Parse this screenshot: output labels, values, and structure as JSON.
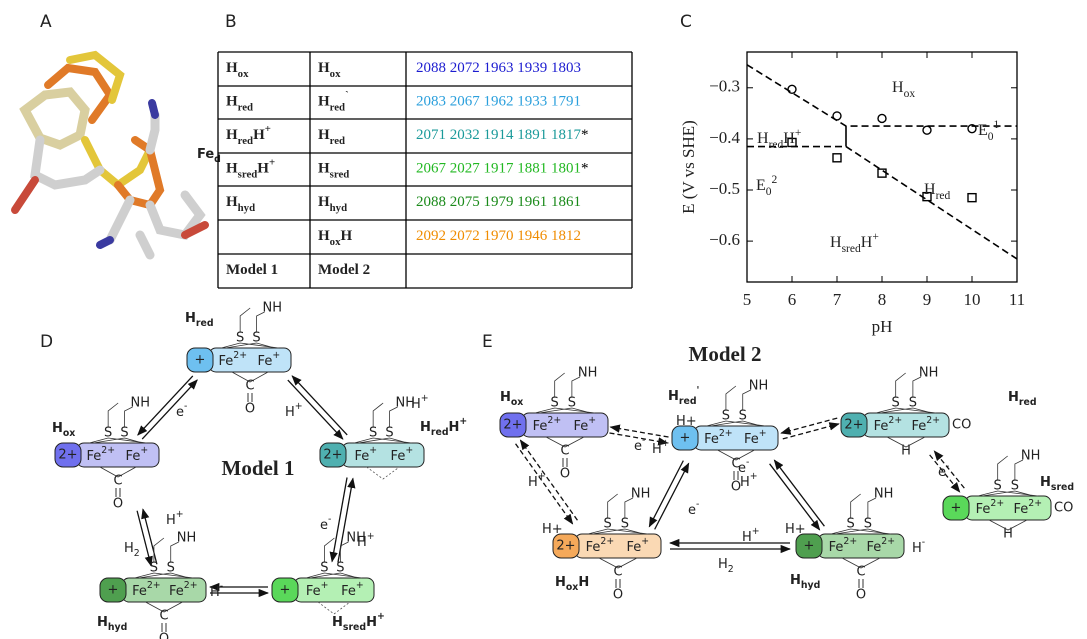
{
  "panel_labels": [
    "A",
    "B",
    "C",
    "D",
    "E"
  ],
  "structure": {
    "label": [
      {
        "text": "Fe"
      },
      {
        "text": "d",
        "shift": "sub"
      }
    ]
  },
  "table": {
    "rows": [
      {
        "model1": [
          {
            "text": "H"
          },
          {
            "text": "ox",
            "shift": "sub"
          }
        ],
        "model2": [
          {
            "text": "H"
          },
          {
            "text": "ox",
            "shift": "sub"
          }
        ],
        "frequencies": "2088 2072 1963 1939 1803",
        "color": "#1c1cd0"
      },
      {
        "model1": [
          {
            "text": "H"
          },
          {
            "text": "red",
            "shift": "sub"
          }
        ],
        "model2": [
          {
            "text": "H"
          },
          {
            "text": "red",
            "shift": "sub"
          },
          {
            "text": "`",
            "shift": "super"
          }
        ],
        "frequencies": "2083 2067 1962 1933 1791",
        "color": "#2a9fdc"
      },
      {
        "model1": [
          {
            "text": "H"
          },
          {
            "text": "red",
            "shift": "sub"
          },
          {
            "text": "H"
          },
          {
            "text": "+",
            "shift": "super"
          }
        ],
        "model2": [
          {
            "text": "H"
          },
          {
            "text": "red",
            "shift": "sub"
          }
        ],
        "frequencies": "2071 2032 1914 1891 1817",
        "note": "*",
        "color": "#1a9a9a"
      },
      {
        "model1": [
          {
            "text": "H"
          },
          {
            "text": "sred",
            "shift": "sub"
          },
          {
            "text": "H"
          },
          {
            "text": "+",
            "shift": "super"
          }
        ],
        "model2": [
          {
            "text": "H"
          },
          {
            "text": "sred",
            "shift": "sub"
          }
        ],
        "frequencies": "2067 2027 1917 1881 1801",
        "note": "*",
        "color": "#22b822"
      },
      {
        "model1": [
          {
            "text": "H"
          },
          {
            "text": "hyd",
            "shift": "sub"
          }
        ],
        "model2": [
          {
            "text": "H"
          },
          {
            "text": "hyd",
            "shift": "sub"
          }
        ],
        "frequencies": "2088 2075 1979 1961 1861",
        "color": "#1a8a1a"
      },
      {
        "model2": [
          {
            "text": "H"
          },
          {
            "text": "ox",
            "shift": "sub"
          },
          {
            "text": "H"
          }
        ],
        "frequencies": "2092 2072 1970 1946 1812",
        "color": "#f08c00"
      },
      {
        "model1": [
          {
            "text": "Model 1"
          }
        ],
        "model2": [
          {
            "text": "Model 2"
          }
        ]
      }
    ]
  },
  "chart_data": {
    "type": "scatter",
    "xlabel": "pH",
    "ylabel": "E (V vs SHE)",
    "xlim": [
      5,
      11
    ],
    "ylim": [
      -0.68,
      -0.23
    ],
    "xticks": [
      5,
      6,
      7,
      8,
      9,
      10,
      11
    ],
    "yticks": [
      {
        "value": -0.3,
        "label": "−0.3"
      },
      {
        "value": -0.4,
        "label": "−0.4"
      },
      {
        "value": -0.5,
        "label": "−0.5"
      },
      {
        "value": -0.6,
        "label": "−0.6"
      }
    ],
    "series": [
      {
        "marker": "circle",
        "color": "#000000",
        "x": [
          6,
          7,
          8,
          9,
          10
        ],
        "values": [
          -0.303,
          -0.355,
          -0.36,
          -0.383,
          -0.38
        ]
      },
      {
        "marker": "square",
        "color": "#000000",
        "x": [
          6,
          7,
          8,
          9,
          10
        ],
        "values": [
          -0.407,
          -0.437,
          -0.467,
          -0.513,
          -0.515
        ]
      },
      {
        "line": "dashed",
        "color": "#000000",
        "x": [
          5,
          7.2,
          11
        ],
        "values": [
          -0.255,
          -0.375,
          -0.375
        ]
      },
      {
        "line": "dashed",
        "color": "#000000",
        "x": [
          5,
          7.2,
          11
        ],
        "values": [
          -0.415,
          -0.415,
          -0.635
        ]
      },
      {
        "line": "solid",
        "color": "#000000",
        "x": [
          7.2,
          7.2
        ],
        "values": [
          -0.375,
          -0.415
        ]
      }
    ],
    "annotations": [
      {
        "text": [
          {
            "text": "H"
          },
          {
            "text": "ox",
            "shift": "sub"
          }
        ],
        "color": "#2222cc"
      },
      {
        "text": [
          {
            "text": "H"
          },
          {
            "text": "red",
            "shift": "sub"
          },
          {
            "text": "H"
          },
          {
            "text": "+",
            "shift": "super"
          }
        ],
        "color": "#1a9a9a"
      },
      {
        "text": [
          {
            "text": "E"
          },
          {
            "text": "0",
            "shift": "sub"
          },
          {
            "text": "1",
            "shift": "super"
          }
        ],
        "color": "#000000"
      },
      {
        "text": [
          {
            "text": "E"
          },
          {
            "text": "0",
            "shift": "sub"
          },
          {
            "text": "2",
            "shift": "super"
          }
        ],
        "color": "#000000"
      },
      {
        "text": [
          {
            "text": "H"
          },
          {
            "text": "red",
            "shift": "sub"
          }
        ],
        "color": "#3aa0e8"
      },
      {
        "text": [
          {
            "text": "H"
          },
          {
            "text": "sred",
            "shift": "sub"
          },
          {
            "text": "H"
          },
          {
            "text": "+",
            "shift": "super"
          }
        ],
        "color": "#30c030"
      }
    ]
  },
  "model1": {
    "title": "Model 1",
    "nodes": [
      {
        "name": [
          {
            "text": "H"
          },
          {
            "text": "red",
            "shift": "sub"
          }
        ],
        "charge": "+",
        "charge_color": "#6ec0f0",
        "box_color": "#bfe3f8",
        "iron": [
          [
            {
              "text": "Fe"
            },
            {
              "text": "2+",
              "shift": "super"
            }
          ],
          [
            {
              "text": "Fe"
            },
            {
              "text": "+",
              "shift": "super"
            }
          ]
        ],
        "sulfur": [
          "S",
          "S"
        ],
        "amine": "NH",
        "bridge": "C",
        "oxygen": "O"
      },
      {
        "name": [
          {
            "text": "H"
          },
          {
            "text": "ox",
            "shift": "sub"
          }
        ],
        "charge": "2+",
        "charge_color": "#7070ee",
        "box_color": "#c0c0f4",
        "iron": [
          [
            {
              "text": "Fe"
            },
            {
              "text": "2+",
              "shift": "super"
            }
          ],
          [
            {
              "text": "Fe"
            },
            {
              "text": "+",
              "shift": "super"
            }
          ]
        ],
        "sulfur": [
          "S",
          "S"
        ],
        "amine": "NH",
        "bridge": "C",
        "oxygen": "O"
      },
      {
        "name": [
          {
            "text": "H"
          },
          {
            "text": "red",
            "shift": "sub"
          },
          {
            "text": "H"
          },
          {
            "text": "+",
            "shift": "super"
          }
        ],
        "charge": "2+",
        "charge_color": "#4fb0b0",
        "box_color": "#b4e2e2",
        "iron": [
          [
            {
              "text": "Fe"
            },
            {
              "text": "+",
              "shift": "super"
            }
          ],
          [
            {
              "text": "Fe"
            },
            {
              "text": "+",
              "shift": "super"
            }
          ]
        ],
        "sulfur": [
          "S",
          "S"
        ],
        "amine": "NH",
        "extras": [
          [
            {
              "text": "H"
            },
            {
              "text": "+",
              "shift": "super"
            }
          ]
        ],
        "extra_color": "#e02020"
      },
      {
        "name": [
          {
            "text": "H"
          },
          {
            "text": "hyd",
            "shift": "sub"
          }
        ],
        "charge": "+",
        "charge_color": "#4f9f4f",
        "box_color": "#a8d8a8",
        "iron": [
          [
            {
              "text": "Fe"
            },
            {
              "text": "2+",
              "shift": "super"
            }
          ],
          [
            {
              "text": "Fe"
            },
            {
              "text": "2+",
              "shift": "super"
            }
          ]
        ],
        "sulfur": [
          "S",
          "S"
        ],
        "amine": "NH",
        "bridge": "C",
        "oxygen": "O",
        "extras": [
          [
            {
              "text": "H"
            },
            {
              "text": "-",
              "shift": "super"
            }
          ]
        ],
        "extra_color": "#e02020"
      },
      {
        "name": [
          {
            "text": "H"
          },
          {
            "text": "sred",
            "shift": "sub"
          },
          {
            "text": "H"
          },
          {
            "text": "+",
            "shift": "super"
          }
        ],
        "charge": "+",
        "charge_color": "#5ad85a",
        "box_color": "#b4f0b4",
        "iron": [
          [
            {
              "text": "Fe"
            },
            {
              "text": "+",
              "shift": "super"
            }
          ],
          [
            {
              "text": "Fe"
            },
            {
              "text": "+",
              "shift": "super"
            }
          ]
        ],
        "sulfur": [
          "S",
          "S"
        ],
        "amine": "NH",
        "extras": [
          [
            {
              "text": "H"
            },
            {
              "text": "+",
              "shift": "super"
            }
          ]
        ],
        "extra_color": "#e02020"
      }
    ],
    "edges": [
      {
        "style": "solid",
        "labels": [
          [
            {
              "text": "e"
            },
            {
              "text": "-",
              "shift": "super"
            }
          ]
        ]
      },
      {
        "style": "solid",
        "labels": [
          [
            {
              "text": "H"
            },
            {
              "text": "+",
              "shift": "super"
            }
          ]
        ]
      },
      {
        "style": "solid",
        "labels": [
          [
            {
              "text": "e"
            },
            {
              "text": "-",
              "shift": "super"
            }
          ]
        ]
      },
      {
        "style": "solid",
        "labels": [
          [
            {
              "text": "H"
            },
            {
              "text": "+",
              "shift": "super"
            }
          ],
          [
            {
              "text": "H"
            },
            {
              "text": "2",
              "shift": "sub"
            }
          ]
        ]
      },
      {
        "style": "solid"
      }
    ]
  },
  "model2": {
    "title": "Model 2",
    "nodes": [
      {
        "name": [
          {
            "text": "H"
          },
          {
            "text": "ox",
            "shift": "sub"
          }
        ],
        "charge": "2+",
        "charge_color": "#7070ee",
        "box_color": "#c0c0f4",
        "iron": [
          [
            {
              "text": "Fe"
            },
            {
              "text": "2+",
              "shift": "super"
            }
          ],
          [
            {
              "text": "Fe"
            },
            {
              "text": "+",
              "shift": "super"
            }
          ]
        ],
        "sulfur": [
          "S",
          "S"
        ],
        "amine": "NH",
        "bridge": "C",
        "oxygen": "O"
      },
      {
        "name": [
          {
            "text": "H"
          },
          {
            "text": "red",
            "shift": "sub"
          },
          {
            "text": "'",
            "shift": "super"
          }
        ],
        "charge": "+",
        "charge_color": "#6ec0f0",
        "box_color": "#bfe3f8",
        "iron": [
          [
            {
              "text": "Fe"
            },
            {
              "text": "2+",
              "shift": "super"
            }
          ],
          [
            {
              "text": "Fe"
            },
            {
              "text": "+",
              "shift": "super"
            }
          ]
        ],
        "sulfur": [
          "S",
          "S"
        ],
        "amine": "NH",
        "bridge": "C",
        "oxygen": "O",
        "extras": [
          [
            {
              "text": "H+"
            }
          ]
        ],
        "extra_color": "#e02020"
      },
      {
        "name": [
          {
            "text": "H"
          },
          {
            "text": "red",
            "shift": "sub"
          }
        ],
        "charge": "2+",
        "charge_color": "#4fb0b0",
        "box_color": "#b4e2e2",
        "iron": [
          [
            {
              "text": "Fe"
            },
            {
              "text": "2+",
              "shift": "super"
            }
          ],
          [
            {
              "text": "Fe"
            },
            {
              "text": "2+",
              "shift": "super"
            }
          ]
        ],
        "sulfur": [
          "S",
          "S"
        ],
        "amine": "NH",
        "bridge": "H",
        "bridge_color": "#e02020",
        "carbonyl": "CO"
      },
      {
        "name": [
          {
            "text": "H"
          },
          {
            "text": "sred",
            "shift": "sub"
          }
        ],
        "charge": "+",
        "charge_color": "#5ad85a",
        "box_color": "#b4f0b4",
        "iron": [
          [
            {
              "text": "Fe"
            },
            {
              "text": "2+",
              "shift": "super"
            }
          ],
          [
            {
              "text": "Fe"
            },
            {
              "text": "2+",
              "shift": "super"
            }
          ]
        ],
        "sulfur": [
          "S",
          "S"
        ],
        "amine": "NH",
        "bridge": "H",
        "bridge_color": "#e02020",
        "carbonyl": "CO"
      },
      {
        "name": [
          {
            "text": "H"
          },
          {
            "text": "ox",
            "shift": "sub"
          },
          {
            "text": "H"
          }
        ],
        "charge": "2+",
        "charge_color": "#f5a95a",
        "box_color": "#fad9b4",
        "iron": [
          [
            {
              "text": "Fe"
            },
            {
              "text": "2+",
              "shift": "super"
            }
          ],
          [
            {
              "text": "Fe"
            },
            {
              "text": "+",
              "shift": "super"
            }
          ]
        ],
        "sulfur": [
          "S",
          "S"
        ],
        "amine": "NH",
        "bridge": "C",
        "oxygen": "O",
        "extras": [
          [
            {
              "text": "H+"
            }
          ]
        ],
        "extra_color": "#e02020"
      },
      {
        "name": [
          {
            "text": "H"
          },
          {
            "text": "hyd",
            "shift": "sub"
          }
        ],
        "charge": "+",
        "charge_color": "#4f9f4f",
        "box_color": "#a8d8a8",
        "iron": [
          [
            {
              "text": "Fe"
            },
            {
              "text": "2+",
              "shift": "super"
            }
          ],
          [
            {
              "text": "Fe"
            },
            {
              "text": "2+",
              "shift": "super"
            }
          ]
        ],
        "sulfur": [
          "S",
          "S"
        ],
        "amine": "NH",
        "bridge": "C",
        "oxygen": "O",
        "extras": [
          [
            {
              "text": "H+"
            }
          ],
          [
            {
              "text": "H"
            },
            {
              "text": "-",
              "shift": "super"
            }
          ]
        ],
        "extra_color": "#e02020"
      }
    ],
    "edges": [
      {
        "style": "dashed",
        "labels": [
          [
            {
              "text": "e"
            },
            {
              "text": "-",
              "shift": "super"
            }
          ],
          [
            {
              "text": "H"
            },
            {
              "text": "+",
              "shift": "super"
            }
          ]
        ]
      },
      {
        "style": "dashed"
      },
      {
        "style": "dashed",
        "labels": [
          [
            {
              "text": "e"
            },
            {
              "text": "-",
              "shift": "super"
            }
          ]
        ]
      },
      {
        "style": "dashed",
        "labels": [
          [
            {
              "text": "H"
            },
            {
              "text": "+",
              "shift": "super"
            }
          ]
        ]
      },
      {
        "style": "solid",
        "labels": [
          [
            {
              "text": "e"
            },
            {
              "text": "-",
              "shift": "super"
            }
          ]
        ]
      },
      {
        "style": "solid",
        "labels": [
          [
            {
              "text": "e"
            },
            {
              "text": "-",
              "shift": "super"
            }
          ],
          [
            {
              "text": "H"
            },
            {
              "text": "+",
              "shift": "super"
            }
          ]
        ]
      },
      {
        "style": "solid",
        "labels": [
          [
            {
              "text": "H"
            },
            {
              "text": "+",
              "shift": "super"
            }
          ],
          [
            {
              "text": "H"
            },
            {
              "text": "2",
              "shift": "sub"
            }
          ]
        ]
      }
    ]
  }
}
